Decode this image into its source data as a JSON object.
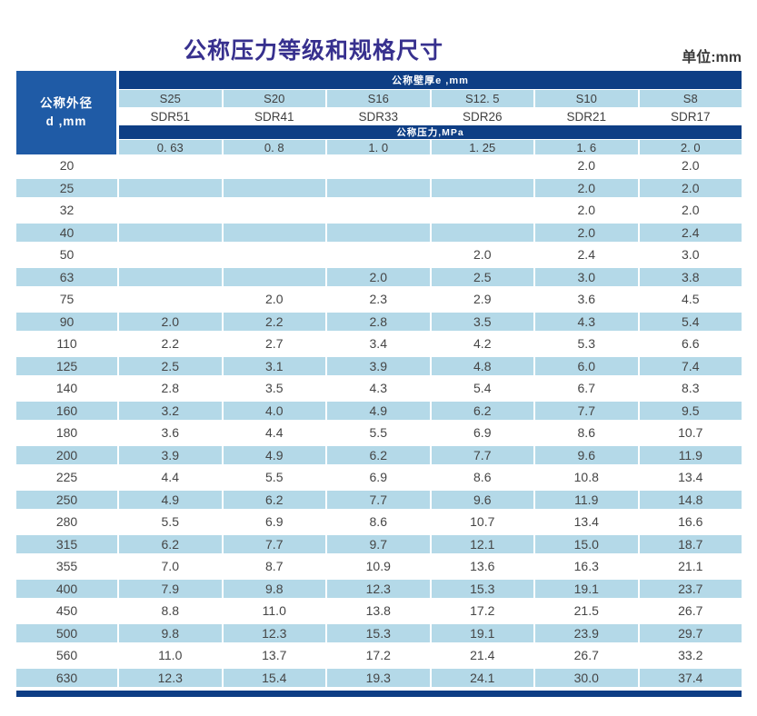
{
  "page": {
    "title": "公称压力等级和规格尺寸",
    "unit_label": "单位:mm"
  },
  "colors": {
    "navy_band": "#0e3e85",
    "corner_header_blue": "#1f5ba6",
    "stripe_light_blue": "#b4d9e8",
    "title_indigo": "#37308e",
    "body_text_gray": "#454545"
  },
  "table": {
    "corner": {
      "line1": "公称外径",
      "line2": "d ,mm"
    },
    "wall_thickness_band_label": "公称壁厚e ,mm",
    "pressure_band_label": "公称压力,MPa",
    "series_labels": [
      "S25",
      "S20",
      "S16",
      "S12. 5",
      "S10",
      "S8"
    ],
    "sdr_labels": [
      "SDR51",
      "SDR41",
      "SDR33",
      "SDR26",
      "SDR21",
      "SDR17"
    ],
    "pressure_values": [
      "0. 63",
      "0. 8",
      "1. 0",
      "1. 25",
      "1. 6",
      "2. 0"
    ],
    "rows": [
      {
        "d": "20",
        "values": [
          "",
          "",
          "",
          "",
          "2.0",
          "2.0"
        ]
      },
      {
        "d": "25",
        "values": [
          "",
          "",
          "",
          "",
          "2.0",
          "2.0"
        ]
      },
      {
        "d": "32",
        "values": [
          "",
          "",
          "",
          "",
          "2.0",
          "2.0"
        ]
      },
      {
        "d": "40",
        "values": [
          "",
          "",
          "",
          "",
          "2.0",
          "2.4"
        ]
      },
      {
        "d": "50",
        "values": [
          "",
          "",
          "",
          "2.0",
          "2.4",
          "3.0"
        ]
      },
      {
        "d": "63",
        "values": [
          "",
          "",
          "2.0",
          "2.5",
          "3.0",
          "3.8"
        ]
      },
      {
        "d": "75",
        "values": [
          "",
          "2.0",
          "2.3",
          "2.9",
          "3.6",
          "4.5"
        ]
      },
      {
        "d": "90",
        "values": [
          "2.0",
          "2.2",
          "2.8",
          "3.5",
          "4.3",
          "5.4"
        ]
      },
      {
        "d": "110",
        "values": [
          "2.2",
          "2.7",
          "3.4",
          "4.2",
          "5.3",
          "6.6"
        ]
      },
      {
        "d": "125",
        "values": [
          "2.5",
          "3.1",
          "3.9",
          "4.8",
          "6.0",
          "7.4"
        ]
      },
      {
        "d": "140",
        "values": [
          "2.8",
          "3.5",
          "4.3",
          "5.4",
          "6.7",
          "8.3"
        ]
      },
      {
        "d": "160",
        "values": [
          "3.2",
          "4.0",
          "4.9",
          "6.2",
          "7.7",
          "9.5"
        ]
      },
      {
        "d": "180",
        "values": [
          "3.6",
          "4.4",
          "5.5",
          "6.9",
          "8.6",
          "10.7"
        ]
      },
      {
        "d": "200",
        "values": [
          "3.9",
          "4.9",
          "6.2",
          "7.7",
          "9.6",
          "11.9"
        ]
      },
      {
        "d": "225",
        "values": [
          "4.4",
          "5.5",
          "6.9",
          "8.6",
          "10.8",
          "13.4"
        ]
      },
      {
        "d": "250",
        "values": [
          "4.9",
          "6.2",
          "7.7",
          "9.6",
          "11.9",
          "14.8"
        ]
      },
      {
        "d": "280",
        "values": [
          "5.5",
          "6.9",
          "8.6",
          "10.7",
          "13.4",
          "16.6"
        ]
      },
      {
        "d": "315",
        "values": [
          "6.2",
          "7.7",
          "9.7",
          "12.1",
          "15.0",
          "18.7"
        ]
      },
      {
        "d": "355",
        "values": [
          "7.0",
          "8.7",
          "10.9",
          "13.6",
          "16.3",
          "21.1"
        ]
      },
      {
        "d": "400",
        "values": [
          "7.9",
          "9.8",
          "12.3",
          "15.3",
          "19.1",
          "23.7"
        ]
      },
      {
        "d": "450",
        "values": [
          "8.8",
          "11.0",
          "13.8",
          "17.2",
          "21.5",
          "26.7"
        ]
      },
      {
        "d": "500",
        "values": [
          "9.8",
          "12.3",
          "15.3",
          "19.1",
          "23.9",
          "29.7"
        ]
      },
      {
        "d": "560",
        "values": [
          "11.0",
          "13.7",
          "17.2",
          "21.4",
          "26.7",
          "33.2"
        ]
      },
      {
        "d": "630",
        "values": [
          "12.3",
          "15.4",
          "19.3",
          "24.1",
          "30.0",
          "37.4"
        ]
      }
    ]
  }
}
